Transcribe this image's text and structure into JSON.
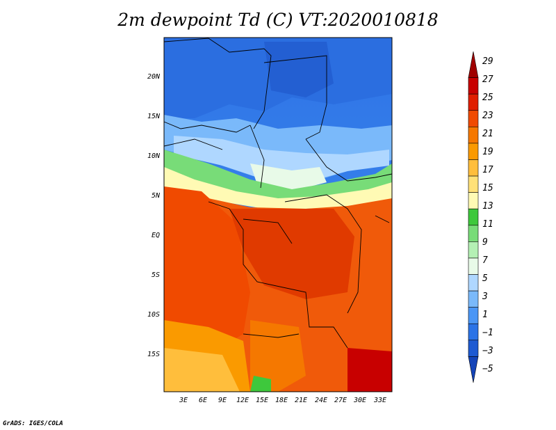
{
  "title": "2m dewpoint Td (C) VT:2020010818",
  "credit": "GrADS: IGES/COLA",
  "map": {
    "lat_labels": [
      "20N",
      "15N",
      "10N",
      "5N",
      "EQ",
      "5S",
      "10S",
      "15S"
    ],
    "lon_labels": [
      "3E",
      "6E",
      "9E",
      "12E",
      "15E",
      "18E",
      "21E",
      "24E",
      "27E",
      "30E",
      "33E"
    ]
  },
  "colorbar": {
    "labels": [
      "29",
      "27",
      "25",
      "23",
      "21",
      "19",
      "17",
      "15",
      "13",
      "11",
      "9",
      "7",
      "5",
      "3",
      "1",
      "−1",
      "−3",
      "−5"
    ],
    "colors": [
      "#a00000",
      "#c80000",
      "#e01e00",
      "#f04a00",
      "#f57800",
      "#fa9a00",
      "#ffbe3c",
      "#ffe178",
      "#fffab4",
      "#3ec83c",
      "#78dc78",
      "#b4f0b4",
      "#e8fae8",
      "#afd7ff",
      "#7ab9fa",
      "#4b96f5",
      "#2b73e6",
      "#1e5ad2",
      "#1444b8"
    ]
  }
}
